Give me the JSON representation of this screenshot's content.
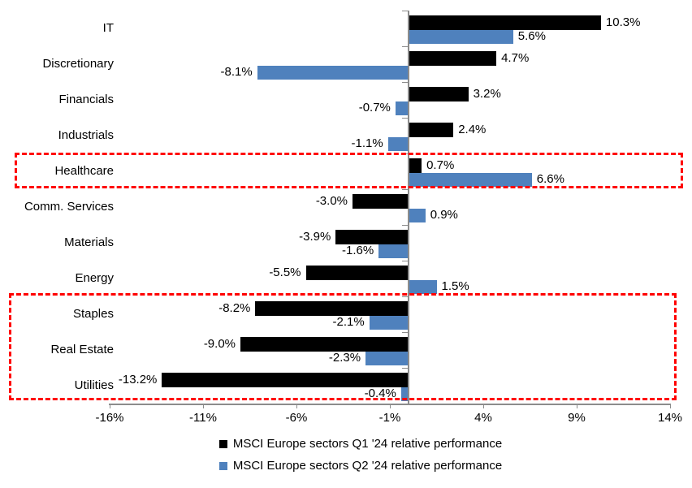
{
  "chart_data": {
    "type": "bar",
    "orientation": "horizontal",
    "title": "",
    "categories": [
      "IT",
      "Discretionary",
      "Financials",
      "Industrials",
      "Healthcare",
      "Comm. Services",
      "Materials",
      "Energy",
      "Staples",
      "Real Estate",
      "Utilities"
    ],
    "series": [
      {
        "name": "MSCI Europe sectors Q1 '24 relative performance",
        "color": "#000000",
        "values": [
          10.3,
          4.7,
          3.2,
          2.4,
          0.7,
          -3.0,
          -3.9,
          -5.5,
          -8.2,
          -9.0,
          -13.2
        ],
        "data_labels": [
          "10.3%",
          "4.7%",
          "3.2%",
          "2.4%",
          "0.7%",
          "-3.0%",
          "-3.9%",
          "-5.5%",
          "-8.2%",
          "-9.0%",
          "-13.2%"
        ]
      },
      {
        "name": "MSCI Europe sectors Q2 '24 relative performance",
        "color": "#4F81BD",
        "values": [
          5.6,
          -8.1,
          -0.7,
          -1.1,
          6.6,
          0.9,
          -1.6,
          1.5,
          -2.1,
          -2.3,
          -0.4
        ],
        "data_labels": [
          "5.6%",
          "-8.1%",
          "-0.7%",
          "-1.1%",
          "6.6%",
          "0.9%",
          "-1.6%",
          "1.5%",
          "-2.1%",
          "-2.3%",
          "-0.4%"
        ]
      }
    ],
    "xlim": [
      -16,
      14
    ],
    "x_tick_values": [
      -16,
      -11,
      -6,
      -1,
      4,
      9,
      14
    ],
    "x_tick_labels": [
      "-16%",
      "-11%",
      "-6%",
      "-1%",
      "4%",
      "9%",
      "14%"
    ],
    "grid": "off",
    "legend_position": "bottom",
    "axis_color": "#8c8c8c",
    "highlight_color": "#ff0000",
    "highlight_boxes": [
      {
        "name": "healthcare-highlight",
        "categories": [
          "Healthcare"
        ]
      },
      {
        "name": "defensives-highlight",
        "categories": [
          "Staples",
          "Real Estate",
          "Utilities"
        ]
      }
    ]
  }
}
